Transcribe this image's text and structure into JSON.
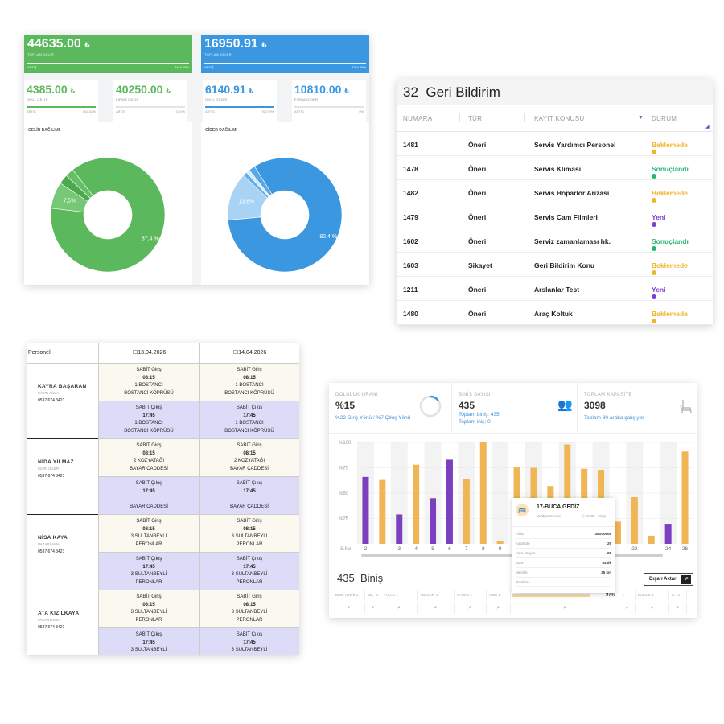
{
  "finance": {
    "income_total": {
      "value": "44635.00",
      "currency": "₺",
      "label": "TOPLAM GELİR",
      "foot_left": "ARTIŞ",
      "foot_right": "8484.15%"
    },
    "expense_total": {
      "value": "16950.91",
      "currency": "₺",
      "label": "TOPLAM GİDER",
      "foot_left": "ARTIŞ",
      "foot_right": "2254.29%"
    },
    "cards": [
      {
        "value": "4385.00",
        "currency": "₺",
        "label": "OKUL GELİR",
        "foot_left": "ARTIŞ",
        "foot_right": "563.02%"
      },
      {
        "value": "40250.00",
        "currency": "₺",
        "label": "FİRMA GELİR",
        "foot_left": "ARTIŞ",
        "foot_right": "0.00%"
      },
      {
        "value": "6140.91",
        "currency": "₺",
        "label": "OKUL GİDER",
        "foot_left": "ARTIŞ",
        "foot_right": "762.99%"
      },
      {
        "value": "10810.00",
        "currency": "₺",
        "label": "FİRMA GİDER",
        "foot_left": "ARTIŞ",
        "foot_right": "0%"
      }
    ],
    "income_chart_title": "GELİR DAĞILIMI",
    "expense_chart_title": "GİDER DAĞILIMI",
    "colors": {
      "green": "#5cb85c",
      "blue": "#3a97e0"
    }
  },
  "chart_data": [
    {
      "type": "pie",
      "title": "GELİR DAĞILIMI",
      "slices": [
        {
          "value": 87.4,
          "label": "87,4 %",
          "color": "#5cb85c"
        },
        {
          "value": 7.5,
          "label": "7,5%",
          "color": "#76c776"
        },
        {
          "value": 2.7,
          "label": "",
          "color": "#4ea84e"
        },
        {
          "value": 2.4,
          "label": "",
          "color": "#66bf66"
        }
      ]
    },
    {
      "type": "pie",
      "title": "GİDER DAĞILIMI",
      "slices": [
        {
          "value": 82.4,
          "label": "82,4 %",
          "color": "#3a97e0"
        },
        {
          "value": 13.6,
          "label": "13,6%",
          "color": "#a9d3f5"
        },
        {
          "value": 1.2,
          "label": "",
          "color": "#63aeea"
        },
        {
          "value": 1.0,
          "label": "",
          "color": "#d6ebfb"
        },
        {
          "value": 1.8,
          "label": "",
          "color": "#5aa7e6"
        }
      ]
    },
    {
      "type": "bar",
      "y_ticks": [
        "%100",
        "%75",
        "%50",
        "%25"
      ],
      "x_start_label": "S.No",
      "ylim": [
        0,
        100
      ],
      "bars": [
        {
          "x": "2",
          "value": 66,
          "color": "#7b3fbf"
        },
        {
          "x": "",
          "value": 63,
          "color": "#f0b655"
        },
        {
          "x": "3",
          "value": 29,
          "color": "#7b3fbf"
        },
        {
          "x": "4",
          "value": 78,
          "color": "#f0b655"
        },
        {
          "x": "5",
          "value": 45,
          "color": "#7b3fbf"
        },
        {
          "x": "6",
          "value": 83,
          "color": "#7b3fbf"
        },
        {
          "x": "7",
          "value": 64,
          "color": "#f0b655"
        },
        {
          "x": "8",
          "value": 100,
          "color": "#f0b655"
        },
        {
          "x": "9",
          "value": 3,
          "color": "#f0b655"
        },
        {
          "x": "10",
          "value": 76,
          "color": "#f0b655"
        },
        {
          "x": "12",
          "value": 75,
          "color": "#f0b655"
        },
        {
          "x": "",
          "value": 57,
          "color": "#f0b655"
        },
        {
          "x": "",
          "value": 98,
          "color": "#f0b655"
        },
        {
          "x": "",
          "value": 74,
          "color": "#f0b655"
        },
        {
          "x": "",
          "value": 73,
          "color": "#f0b655"
        },
        {
          "x": "",
          "value": 22,
          "color": "#f0b655"
        },
        {
          "x": "22",
          "value": 46,
          "color": "#f0b655"
        },
        {
          "x": "",
          "value": 8,
          "color": "#f0b655"
        },
        {
          "x": "24",
          "value": 19,
          "color": "#7b3fbf"
        },
        {
          "x": "26",
          "value": 91,
          "color": "#f0b655"
        }
      ]
    }
  ],
  "feedback": {
    "count": "32",
    "title": "Geri Bildirim",
    "columns": [
      "NUMARA",
      "TÜR",
      "KAYIT KONUSU",
      "DURUM"
    ],
    "rows": [
      {
        "no": "1481",
        "type": "Öneri",
        "subject": "Servis Yardımcı Personel",
        "status": "Beklemede",
        "color": "#f0b429"
      },
      {
        "no": "1478",
        "type": "Öneri",
        "subject": "Servis Kliması",
        "status": "Sonuçlandı",
        "color": "#22b573"
      },
      {
        "no": "1482",
        "type": "Öneri",
        "subject": "Servis Hoparlör Arızası",
        "status": "Beklemede",
        "color": "#f0b429"
      },
      {
        "no": "1479",
        "type": "Öneri",
        "subject": "Servis Cam Filmleri",
        "status": "Yeni",
        "color": "#7b3fcf"
      },
      {
        "no": "1602",
        "type": "Öneri",
        "subject": "Serviz zamanlaması hk.",
        "status": "Sonuçlandı",
        "color": "#22b573"
      },
      {
        "no": "1603",
        "type": "Şikayet",
        "subject": "Geri Bildirim Konu",
        "status": "Beklemede",
        "color": "#f0b429"
      },
      {
        "no": "1211",
        "type": "Öneri",
        "subject": "Arslanlar Test",
        "status": "Yeni",
        "color": "#7b3fcf"
      },
      {
        "no": "1480",
        "type": "Öneri",
        "subject": "Araç Koltuk",
        "status": "Beklemede",
        "color": "#f0b429"
      }
    ]
  },
  "schedule": {
    "header_personel": "Personel",
    "dates": [
      "13.04.2026",
      "14.04.2026"
    ],
    "people": [
      {
        "name": "KAYRA BAŞARAN",
        "dept": "SATIN ALMA",
        "phone": "0537 674 3421",
        "in": [
          "SABİT Giriş",
          "08:15",
          "1 BOSTANCI",
          "BOSTANCI KÖPRÜSÜ"
        ],
        "out": [
          "SABİT Çıkış",
          "17:45",
          "1 BOSTANCI",
          "BOSTANCI KÖPRÜSÜ"
        ],
        "in2": [
          "SABİT Giriş",
          "08:15",
          "1 BOSTANCI",
          "BOSTANCI KÖPRÜSÜ"
        ],
        "out2": [
          "SABİT Çıkış",
          "17:45",
          "1 BOSTANCI",
          "BOSTANCI KÖPRÜSÜ"
        ]
      },
      {
        "name": "NİDA YILMAZ",
        "dept": "İDARİ İŞLER",
        "phone": "0537 674 3421",
        "in": [
          "SABİT Giriş",
          "08:15",
          "2 KOZYATAĞI",
          "BAYAR CADDESİ"
        ],
        "out": [
          "SABİT Çıkış",
          "17:45",
          "",
          "BAYAR CADDESİ"
        ],
        "in2": [
          "SABİT Giriş",
          "08:15",
          "2 KOZYATAĞI",
          "BAYAR CADDESİ"
        ],
        "out2": [
          "SABİT Çıkış",
          "17:45",
          "",
          "BAYAR CADDESİ"
        ]
      },
      {
        "name": "NİSA KAYA",
        "dept": "PAZARLAMA",
        "phone": "0537 674 3421",
        "in": [
          "SABİT Giriş",
          "08:15",
          "3 SULTANBEYLİ",
          "PERONLAR"
        ],
        "out": [
          "SABİT Çıkış",
          "17:45",
          "3 SULTANBEYLİ",
          "PERONLAR"
        ],
        "in2": [
          "SABİT Giriş",
          "08:15",
          "3 SULTANBEYLİ",
          "PERONLAR"
        ],
        "out2": [
          "SABİT Çıkış",
          "17:45",
          "3 SULTANBEYLİ",
          "PERONLAR"
        ]
      },
      {
        "name": "ATA KIZILKAYA",
        "dept": "PAZARLAMA",
        "phone": "0537 674 3421",
        "in": [
          "SABİT Giriş",
          "08:15",
          "3 SULTANBEYLİ",
          "PERONLAR"
        ],
        "out": [
          "SABİT Çıkış",
          "17:45",
          "3 SULTANBEYLİ",
          "PERONLAR"
        ],
        "in2": [
          "SABİT Giriş",
          "08:15",
          "3 SULTANBEYLİ",
          "PERONLAR"
        ],
        "out2": [
          "SABİT Çıkış",
          "17:45",
          "3 SULTANBEYLİ",
          "PERONLAR"
        ]
      }
    ]
  },
  "occupancy": {
    "stat1": {
      "title": "DOLULUK ORANI",
      "value": "%15",
      "sub": "%22 Giriş Yönü / %7 Çıkış Yönü",
      "ring_percent": 15
    },
    "stat2": {
      "title": "BİNİŞ SAYISI",
      "value": "435",
      "sub1": "Toplam biniş: 435",
      "sub2": "Toplam iniş: 0"
    },
    "stat3": {
      "title": "TOPLAM KAPASİTE",
      "value": "3098",
      "sub": "Toplam 30 araba çalışıyor"
    },
    "bottom_count": "435",
    "bottom_label": "Biniş",
    "export_label": "Dışarı Aktar",
    "table_headers": [
      "BİNİŞ TARİHİ",
      "BİL...",
      "YOLCU",
      "TELEFON",
      "S.TÜRÜ",
      "S.NO",
      "",
      "97%",
      "",
      "KOLTUK",
      "K..."
    ],
    "progress_value": "97%",
    "tooltip": {
      "name": "17-BUCA GEDİZ",
      "type": "Vardiya Servisi",
      "time": "07:30 - Giriş",
      "rows": [
        {
          "k": "Plaka",
          "v": "35S00606"
        },
        {
          "k": "Kapasite",
          "v": "29"
        },
        {
          "k": "Yolcu Sayısı",
          "v": "28"
        },
        {
          "k": "Süre",
          "v": "54 dk"
        },
        {
          "k": "Mesafe",
          "v": "25 km"
        },
        {
          "k": "Gecikme",
          "v": "-"
        }
      ]
    }
  }
}
